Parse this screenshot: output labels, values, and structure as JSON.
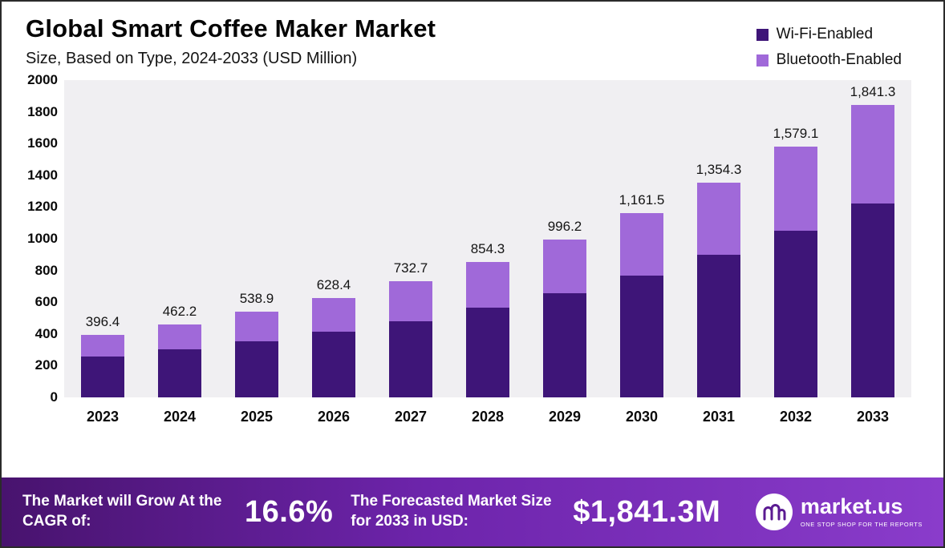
{
  "title": "Global Smart Coffee Maker Market",
  "subtitle": "Size, Based on Type, 2024-2033 (USD Million)",
  "legend": [
    {
      "label": "Wi-Fi-Enabled",
      "color": "#3e1578"
    },
    {
      "label": "Bluetooth-Enabled",
      "color": "#a069d9"
    }
  ],
  "chart_data": {
    "type": "bar",
    "stacked": true,
    "title": "Global Smart Coffee Maker Market Size, Based on Type, 2024-2033 (USD Million)",
    "categories": [
      "2023",
      "2024",
      "2025",
      "2026",
      "2027",
      "2028",
      "2029",
      "2030",
      "2031",
      "2032",
      "2033"
    ],
    "series": [
      {
        "name": "Wi-Fi-Enabled",
        "color": "#3e1578",
        "values": [
          258,
          303,
          354,
          413,
          482,
          565,
          658,
          769,
          898,
          1049,
          1221
        ]
      },
      {
        "name": "Bluetooth-Enabled",
        "color": "#a069d9",
        "values": [
          138.4,
          159.2,
          184.9,
          215.4,
          250.7,
          289.3,
          338.2,
          392.5,
          456.3,
          530.1,
          620.3
        ]
      }
    ],
    "totals": [
      396.4,
      462.2,
      538.9,
      628.4,
      732.7,
      854.3,
      996.2,
      1161.5,
      1354.3,
      1579.1,
      1841.3
    ],
    "total_labels": [
      "396.4",
      "462.2",
      "538.9",
      "628.4",
      "732.7",
      "854.3",
      "996.2",
      "1,161.5",
      "1,354.3",
      "1,579.1",
      "1,841.3"
    ],
    "ylim": [
      0,
      2000
    ],
    "yticks": [
      0,
      200,
      400,
      600,
      800,
      1000,
      1200,
      1400,
      1600,
      1800,
      2000
    ],
    "grid": false,
    "legend_position": "top-right"
  },
  "banner": {
    "cagr_label": "The Market will Grow At the CAGR of:",
    "cagr_value": "16.6%",
    "forecast_label": "The Forecasted Market Size for 2033 in USD:",
    "forecast_value": "$1,841.3M",
    "brand_name": "market.us",
    "brand_tagline": "One Stop Shop For The Reports"
  }
}
